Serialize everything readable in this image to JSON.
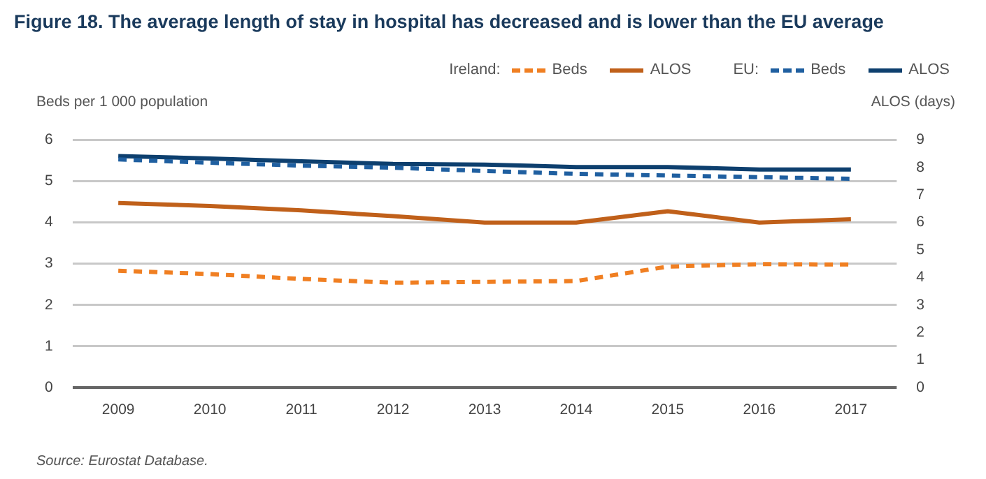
{
  "chart_data": {
    "type": "line",
    "title": "Figure 18. The average length of stay in hospital has decreased and is lower than the EU average",
    "ylabel": "Beds per 1 000 population",
    "y2label": "ALOS (days)",
    "categories": [
      "2009",
      "2010",
      "2011",
      "2012",
      "2013",
      "2014",
      "2015",
      "2016",
      "2017"
    ],
    "series": [
      {
        "name": "Beds",
        "color": "#f07f22",
        "line_style": "dashed",
        "values": [
          2.83,
          2.75,
          2.63,
          2.54,
          2.56,
          2.58,
          2.93,
          2.99,
          2.98
        ]
      },
      {
        "name": "ALOS",
        "color": "#c0601a",
        "line_style": "solid",
        "axis": "y2",
        "values": [
          6.71,
          6.6,
          6.44,
          6.23,
          6.0,
          6.0,
          6.41,
          6.0,
          6.12
        ]
      },
      {
        "name": "Beds",
        "color": "#1f5fa0",
        "line_style": "dashed",
        "values": [
          5.53,
          5.45,
          5.38,
          5.33,
          5.25,
          5.18,
          5.14,
          5.1,
          5.06
        ]
      },
      {
        "name": "ALOS",
        "color": "#0d3f6e",
        "line_style": "solid",
        "axis": "y2",
        "values": [
          8.42,
          8.33,
          8.23,
          8.13,
          8.11,
          8.02,
          8.02,
          7.93,
          7.93
        ]
      }
    ],
    "ylim": [
      0,
      6
    ],
    "yticks": [
      0,
      1,
      2,
      3,
      4,
      5,
      6
    ],
    "y2lim": [
      0,
      9
    ],
    "y2ticks": [
      0,
      1,
      2,
      3,
      4,
      5,
      6,
      7,
      8,
      9
    ],
    "grid": "y",
    "legend": "top right",
    "marker": "none",
    "annotations": [
      "Ireland:",
      "EU:",
      "Source: Eurostat Database."
    ]
  }
}
